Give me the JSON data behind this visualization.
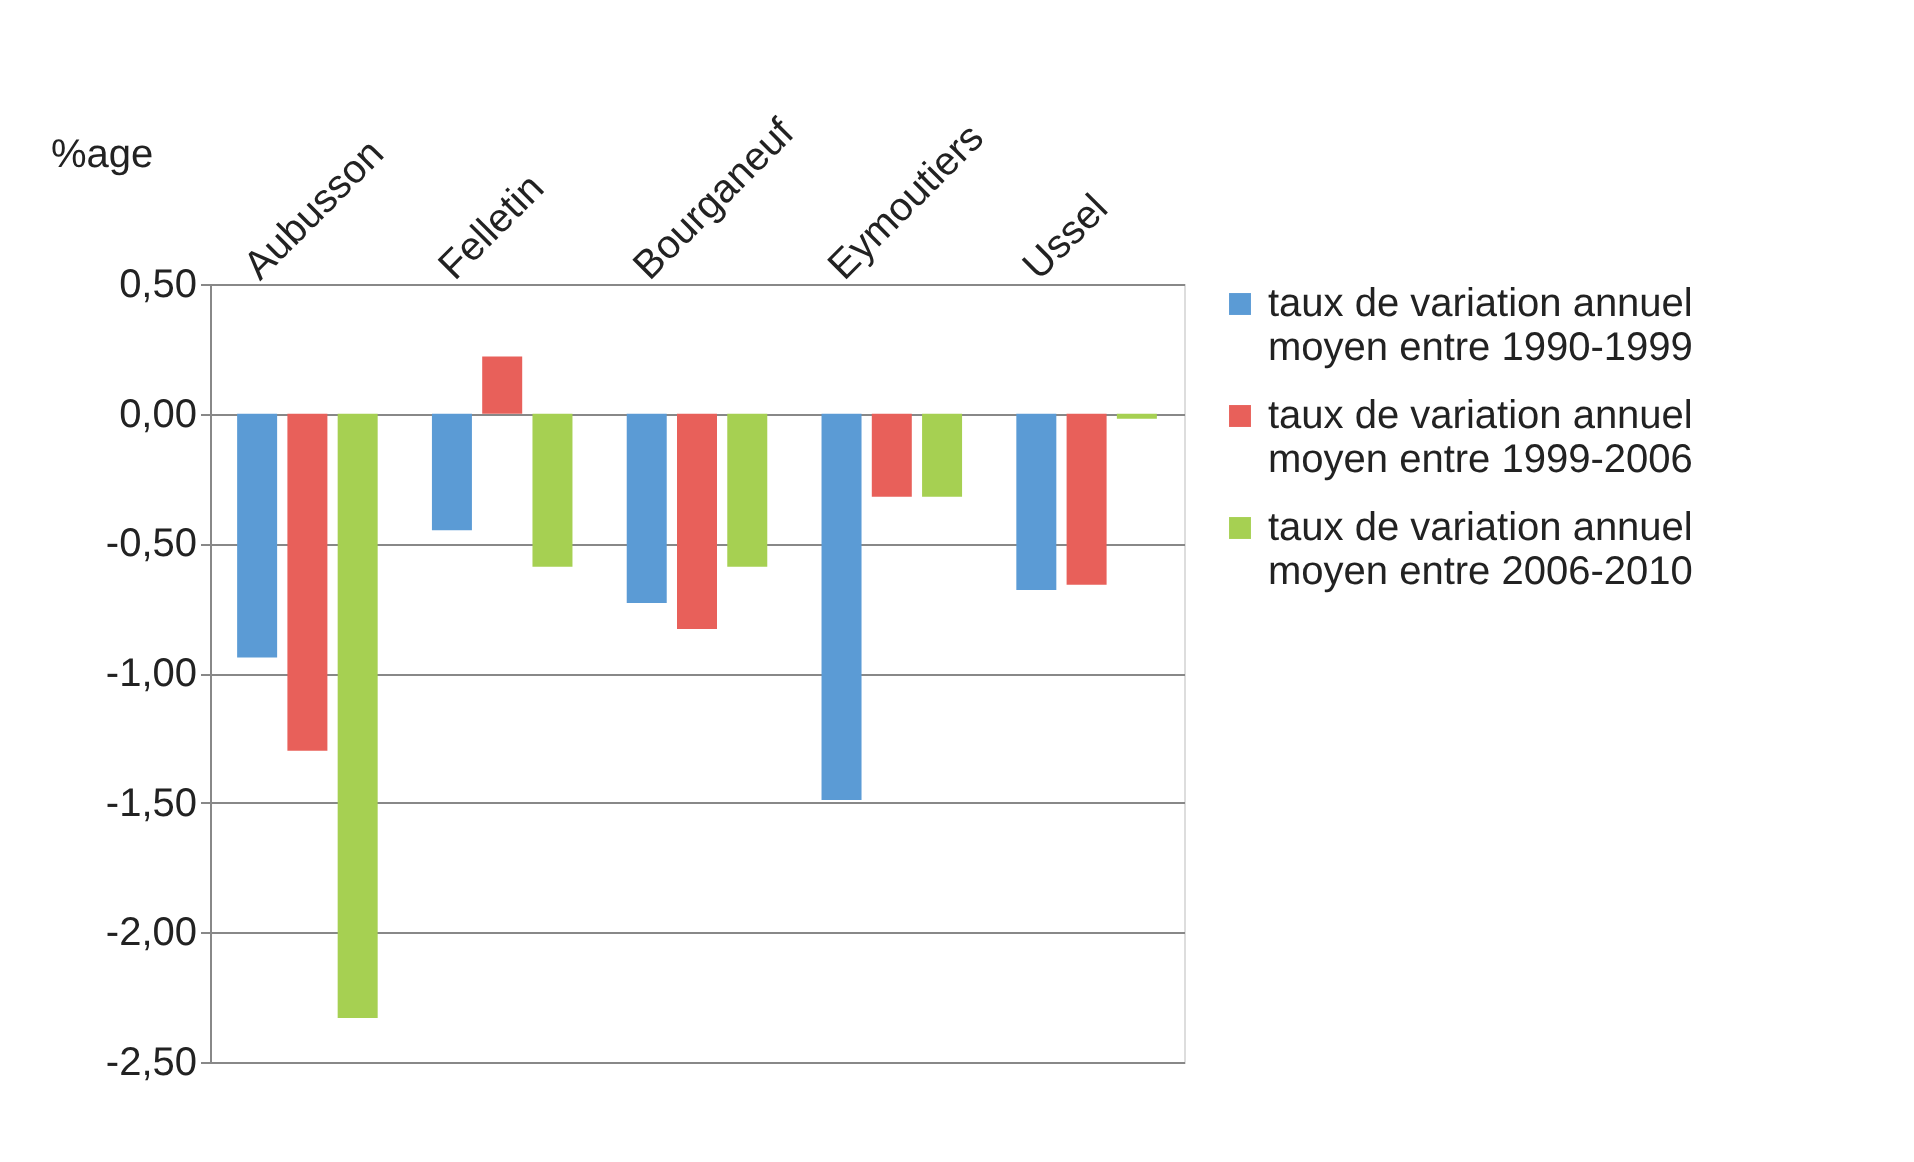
{
  "chart_data": {
    "type": "bar",
    "ylabel": "%age",
    "categories": [
      "Aubusson",
      "Felletin",
      "Bourganeuf",
      "Eymoutiers",
      "Ussel"
    ],
    "series": [
      {
        "name": "taux de variation annuel moyen entre 1990-1999",
        "color": "#5b9bd5",
        "values": [
          -0.94,
          -0.45,
          -0.73,
          -1.49,
          -0.68
        ]
      },
      {
        "name": "taux de variation annuel moyen entre 1999-2006",
        "color": "#e8605a",
        "values": [
          -1.3,
          0.22,
          -0.83,
          -0.32,
          -0.66
        ]
      },
      {
        "name": "taux de variation annuel moyen entre 2006-2010",
        "color": "#a6d052",
        "values": [
          -2.33,
          -0.59,
          -0.59,
          -0.32,
          -0.02
        ]
      }
    ],
    "ylim": [
      -2.5,
      0.5
    ],
    "yticks": [
      {
        "value": 0.5,
        "label": "0,50"
      },
      {
        "value": 0,
        "label": "0,00"
      },
      {
        "value": -0.5,
        "label": "-0,50"
      },
      {
        "value": -1,
        "label": "-1,00"
      },
      {
        "value": -1.5,
        "label": "-1,50"
      },
      {
        "value": -2,
        "label": "-2,00"
      },
      {
        "value": -2.5,
        "label": "-2,50"
      }
    ],
    "grid": "y",
    "legend": "right"
  }
}
